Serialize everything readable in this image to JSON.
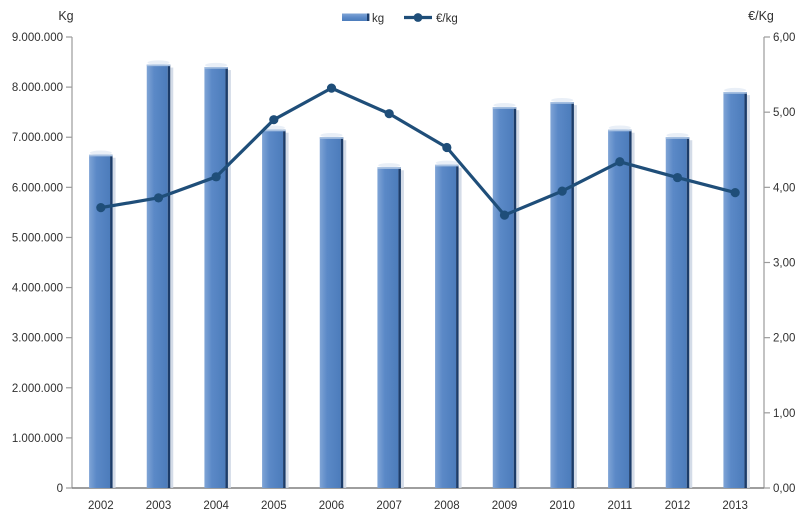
{
  "chart_data": {
    "type": "bar",
    "subtype": "combo-bar-line",
    "title": "",
    "categories": [
      "2002",
      "2003",
      "2004",
      "2005",
      "2006",
      "2007",
      "2008",
      "2009",
      "2010",
      "2011",
      "2012",
      "2013"
    ],
    "series": [
      {
        "name": "kg",
        "type": "bar",
        "axis": "left",
        "values": [
          6650000,
          8450000,
          8400000,
          7150000,
          7000000,
          6400000,
          6450000,
          7600000,
          7700000,
          7150000,
          7000000,
          7900000
        ]
      },
      {
        "name": "€/kg",
        "type": "line",
        "axis": "right",
        "values": [
          3.73,
          3.86,
          4.14,
          4.9,
          5.32,
          4.98,
          4.53,
          3.63,
          3.95,
          4.34,
          4.13,
          3.93
        ]
      }
    ],
    "left_axis": {
      "title": "Kg",
      "min": 0,
      "max": 9000000,
      "step": 1000000,
      "tick_labels_top_to_bottom": [
        "9.000.000",
        "8.000.000",
        "7.000.000",
        "6.000.000",
        "5.000.000",
        "4.000.000",
        "3.000.000",
        "2.000.000",
        "1.000.000",
        "0"
      ]
    },
    "right_axis": {
      "title": "€/Kg",
      "min": 0,
      "max": 6,
      "step": 1,
      "tick_labels_top_to_bottom": [
        "6,00",
        "5,00",
        "4,00",
        "3,00",
        "2,00",
        "1,00",
        "0,00"
      ]
    },
    "legend": {
      "position": "top-center",
      "items": [
        {
          "label": "kg",
          "marker": "bar-swatch"
        },
        {
          "label": "€/kg",
          "marker": "line-marker"
        }
      ]
    },
    "grid": "off",
    "colors": {
      "bar_fill_light": "#7fa4d6",
      "bar_fill_mid": "#5b89c7",
      "bar_fill_dark": "#4c7cbb",
      "bar_edge_dark": "#1c3c69",
      "bar_top_highlight": "#a9c2e2",
      "bar_shadow": "#ccd6e4",
      "line": "#1f4e79",
      "axis_line": "#9b9b9b",
      "x_axis_line": "#7f7f7f",
      "tick": "#9b9b9b",
      "text": "#303030"
    }
  }
}
